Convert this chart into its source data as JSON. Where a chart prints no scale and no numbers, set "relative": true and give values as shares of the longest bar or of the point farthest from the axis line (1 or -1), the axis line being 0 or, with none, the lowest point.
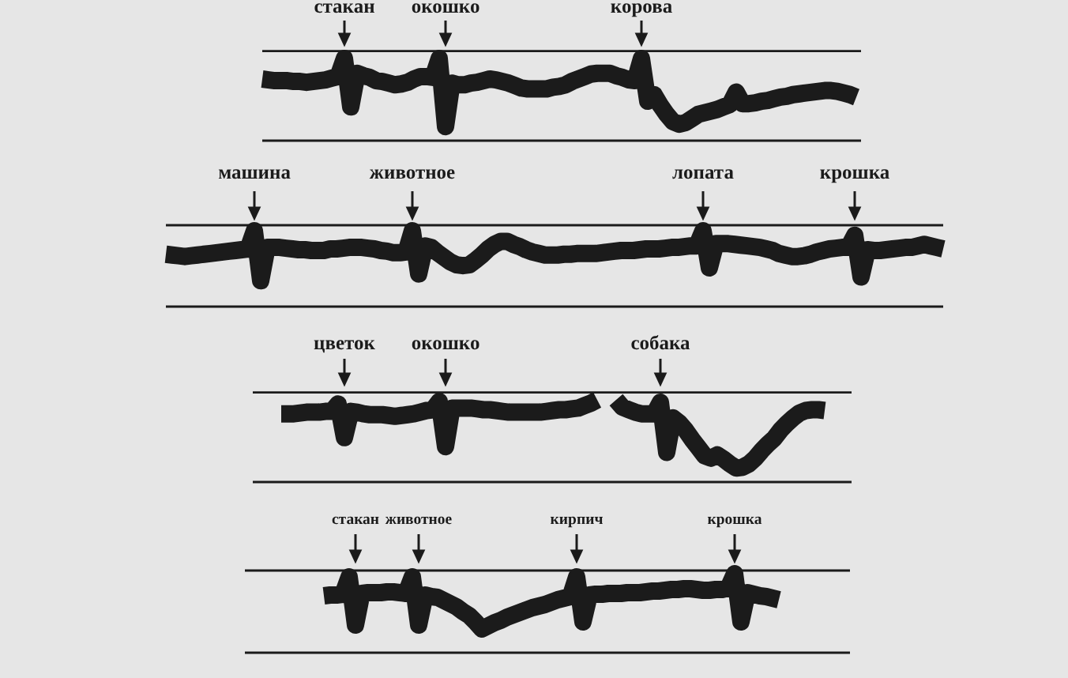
{
  "chart_data": [
    {
      "type": "line",
      "relative": true,
      "marker": "none",
      "categories": [
        null,
        null,
        null,
        null,
        null,
        null,
        null,
        null,
        null,
        null,
        null,
        null,
        null,
        "стакан",
        null,
        null,
        null,
        null,
        null,
        null,
        null,
        null,
        null,
        null,
        null,
        null,
        null,
        null,
        null,
        "окошко",
        null,
        null,
        null,
        null,
        null,
        null,
        null,
        null,
        null,
        null,
        null,
        null,
        null,
        null,
        null,
        null,
        null,
        null,
        null,
        null,
        null,
        null,
        null,
        null,
        null,
        null,
        null,
        null,
        null,
        null,
        "корова",
        null,
        null,
        null,
        null,
        null,
        null,
        null,
        null,
        null,
        null,
        null,
        null,
        null,
        null,
        null,
        null,
        null,
        null,
        null,
        null,
        null,
        null,
        null,
        null,
        null,
        null,
        null,
        null,
        null,
        null,
        null,
        null,
        null,
        null
      ],
      "series": [
        {
          "color": "#1b1b1b",
          "values": [
            0.75,
            0.74,
            0.73,
            0.73,
            0.73,
            0.72,
            0.72,
            0.71,
            0.72,
            0.73,
            0.74,
            0.76,
            0.78,
            1,
            0.41,
            0.82,
            0.79,
            0.77,
            0.73,
            0.72,
            0.7,
            0.68,
            0.69,
            0.71,
            0.75,
            0.78,
            0.78,
            0.77,
            1,
            0.17,
            0.7,
            0.68,
            0.68,
            0.7,
            0.71,
            0.73,
            0.75,
            0.74,
            0.72,
            0.7,
            0.67,
            0.64,
            0.63,
            0.63,
            0.63,
            0.63,
            0.65,
            0.66,
            0.68,
            0.72,
            0.75,
            0.78,
            0.81,
            0.82,
            0.82,
            0.82,
            0.79,
            0.77,
            0.74,
            0.73,
            1,
            0.48,
            0.56,
            0.43,
            0.32,
            0.23,
            0.2,
            0.22,
            0.27,
            0.32,
            0.34,
            0.36,
            0.38,
            0.41,
            0.44,
            0.59,
            0.45,
            0.45,
            0.46,
            0.48,
            0.49,
            0.51,
            0.53,
            0.54,
            0.56,
            0.57,
            0.58,
            0.59,
            0.6,
            0.61,
            0.61,
            0.6,
            0.58,
            0.56,
            0.53
          ]
        }
      ]
    },
    {
      "type": "line",
      "relative": true,
      "marker": "none",
      "categories": [
        null,
        null,
        null,
        null,
        null,
        null,
        null,
        null,
        null,
        null,
        null,
        null,
        null,
        null,
        "машина",
        null,
        null,
        null,
        null,
        null,
        null,
        null,
        null,
        null,
        null,
        null,
        null,
        null,
        null,
        null,
        null,
        null,
        null,
        null,
        null,
        null,
        null,
        null,
        null,
        "животное",
        null,
        null,
        null,
        null,
        null,
        null,
        null,
        null,
        null,
        null,
        null,
        null,
        null,
        null,
        null,
        null,
        null,
        null,
        null,
        null,
        null,
        null,
        null,
        null,
        null,
        null,
        null,
        null,
        null,
        null,
        null,
        null,
        null,
        null,
        null,
        null,
        null,
        null,
        null,
        null,
        null,
        null,
        null,
        null,
        null,
        "лопата",
        null,
        null,
        null,
        null,
        null,
        null,
        null,
        null,
        null,
        null,
        null,
        null,
        null,
        null,
        null,
        null,
        null,
        null,
        null,
        null,
        null,
        null,
        null,
        "крошка",
        null,
        null,
        null,
        null,
        null,
        null,
        null,
        null,
        null,
        null,
        null,
        null,
        null,
        null
      ],
      "series": [
        {
          "color": "#1b1b1b",
          "values": [
            0.69,
            0.68,
            0.67,
            0.66,
            0.67,
            0.68,
            0.69,
            0.7,
            0.71,
            0.72,
            0.73,
            0.74,
            0.75,
            0.76,
            1,
            0.34,
            0.78,
            0.78,
            0.78,
            0.77,
            0.76,
            0.75,
            0.75,
            0.74,
            0.74,
            0.74,
            0.76,
            0.76,
            0.77,
            0.78,
            0.78,
            0.78,
            0.77,
            0.76,
            0.74,
            0.73,
            0.71,
            0.71,
            0.72,
            1,
            0.43,
            0.8,
            0.78,
            0.71,
            0.65,
            0.59,
            0.55,
            0.54,
            0.55,
            0.61,
            0.68,
            0.76,
            0.82,
            0.86,
            0.86,
            0.82,
            0.79,
            0.75,
            0.72,
            0.7,
            0.68,
            0.68,
            0.68,
            0.69,
            0.69,
            0.7,
            0.7,
            0.7,
            0.7,
            0.71,
            0.72,
            0.73,
            0.74,
            0.74,
            0.74,
            0.75,
            0.76,
            0.76,
            0.76,
            0.77,
            0.78,
            0.78,
            0.79,
            0.8,
            0.8,
            1,
            0.51,
            0.83,
            0.83,
            0.83,
            0.82,
            0.81,
            0.8,
            0.79,
            0.78,
            0.76,
            0.74,
            0.7,
            0.68,
            0.66,
            0.66,
            0.67,
            0.69,
            0.72,
            0.74,
            0.76,
            0.77,
            0.78,
            0.78,
            0.94,
            0.39,
            0.75,
            0.74,
            0.74,
            0.75,
            0.76,
            0.77,
            0.78,
            0.78,
            0.8,
            0.82,
            0.8,
            0.78,
            0.76
          ]
        }
      ]
    },
    {
      "type": "line",
      "relative": true,
      "marker": "none",
      "categories": [
        null,
        null,
        null,
        null,
        null,
        null,
        null,
        null,
        null,
        null,
        "цветок",
        null,
        null,
        null,
        null,
        null,
        null,
        null,
        null,
        null,
        null,
        null,
        null,
        null,
        null,
        null,
        "окошко",
        null,
        null,
        null,
        null,
        null,
        null,
        null,
        null,
        null,
        null,
        null,
        null,
        null,
        null,
        null,
        null,
        null,
        null,
        null,
        null,
        null,
        null,
        null,
        null,
        null,
        null,
        null,
        null,
        null,
        null,
        null,
        null,
        null,
        "собака",
        null,
        null,
        null,
        null,
        null,
        null,
        null,
        null,
        null,
        null,
        null,
        null,
        null,
        null,
        null,
        null,
        null,
        null,
        null,
        null,
        null,
        null,
        null,
        null,
        null,
        null
      ],
      "series": [
        {
          "color": "#1b1b1b",
          "values": [
            0.83,
            0.83,
            0.83,
            0.84,
            0.85,
            0.85,
            0.85,
            0.86,
            0.86,
            0.95,
            0.54,
            0.86,
            0.85,
            0.83,
            0.82,
            0.82,
            0.82,
            0.81,
            0.8,
            0.81,
            0.82,
            0.83,
            0.85,
            0.87,
            0.88,
            0.98,
            0.43,
            0.9,
            0.9,
            0.9,
            0.9,
            0.89,
            0.88,
            0.88,
            0.87,
            0.86,
            0.85,
            0.85,
            0.85,
            0.85,
            0.85,
            0.85,
            0.86,
            0.87,
            0.88,
            0.88,
            0.89,
            0.9,
            0.93,
            0.96,
            1,
            null,
            null,
            1,
            0.91,
            0.88,
            0.85,
            0.83,
            0.83,
            0.83,
            0.97,
            0.36,
            0.78,
            0.72,
            0.63,
            0.52,
            0.42,
            0.32,
            0.29,
            0.33,
            0.28,
            0.22,
            0.17,
            0.18,
            0.22,
            0.29,
            0.38,
            0.46,
            0.53,
            0.63,
            0.71,
            0.78,
            0.84,
            0.87,
            0.88,
            0.88,
            0.87
          ]
        }
      ]
    },
    {
      "type": "line",
      "relative": true,
      "marker": "none",
      "categories": [
        null,
        null,
        null,
        null,
        null,
        "стакан",
        null,
        null,
        null,
        null,
        null,
        null,
        null,
        null,
        null,
        "животное",
        null,
        null,
        null,
        null,
        null,
        null,
        null,
        null,
        null,
        null,
        null,
        null,
        null,
        null,
        null,
        null,
        null,
        null,
        null,
        null,
        null,
        null,
        null,
        null,
        "кирпич",
        null,
        null,
        null,
        null,
        null,
        null,
        null,
        null,
        null,
        null,
        null,
        null,
        null,
        null,
        null,
        null,
        null,
        null,
        null,
        null,
        null,
        null,
        null,
        null,
        "крошка",
        null,
        null,
        null,
        null,
        null,
        null,
        null
      ],
      "series": [
        {
          "color": "#1b1b1b",
          "values": [
            0.72,
            0.73,
            0.73,
            0.74,
            0.96,
            0.35,
            0.75,
            0.76,
            0.76,
            0.76,
            0.77,
            0.77,
            0.76,
            0.75,
            0.96,
            0.35,
            0.73,
            0.71,
            0.7,
            0.66,
            0.62,
            0.58,
            0.52,
            0.47,
            0.39,
            0.3,
            0.34,
            0.38,
            0.41,
            0.45,
            0.48,
            0.51,
            0.54,
            0.57,
            0.59,
            0.61,
            0.64,
            0.67,
            0.69,
            0.71,
            0.96,
            0.39,
            0.73,
            0.74,
            0.74,
            0.75,
            0.75,
            0.75,
            0.76,
            0.76,
            0.76,
            0.77,
            0.78,
            0.78,
            0.79,
            0.8,
            0.8,
            0.81,
            0.81,
            0.8,
            0.79,
            0.79,
            0.8,
            0.8,
            0.82,
            1,
            0.39,
            0.76,
            0.74,
            0.72,
            0.71,
            0.69,
            0.67
          ]
        }
      ]
    }
  ]
}
